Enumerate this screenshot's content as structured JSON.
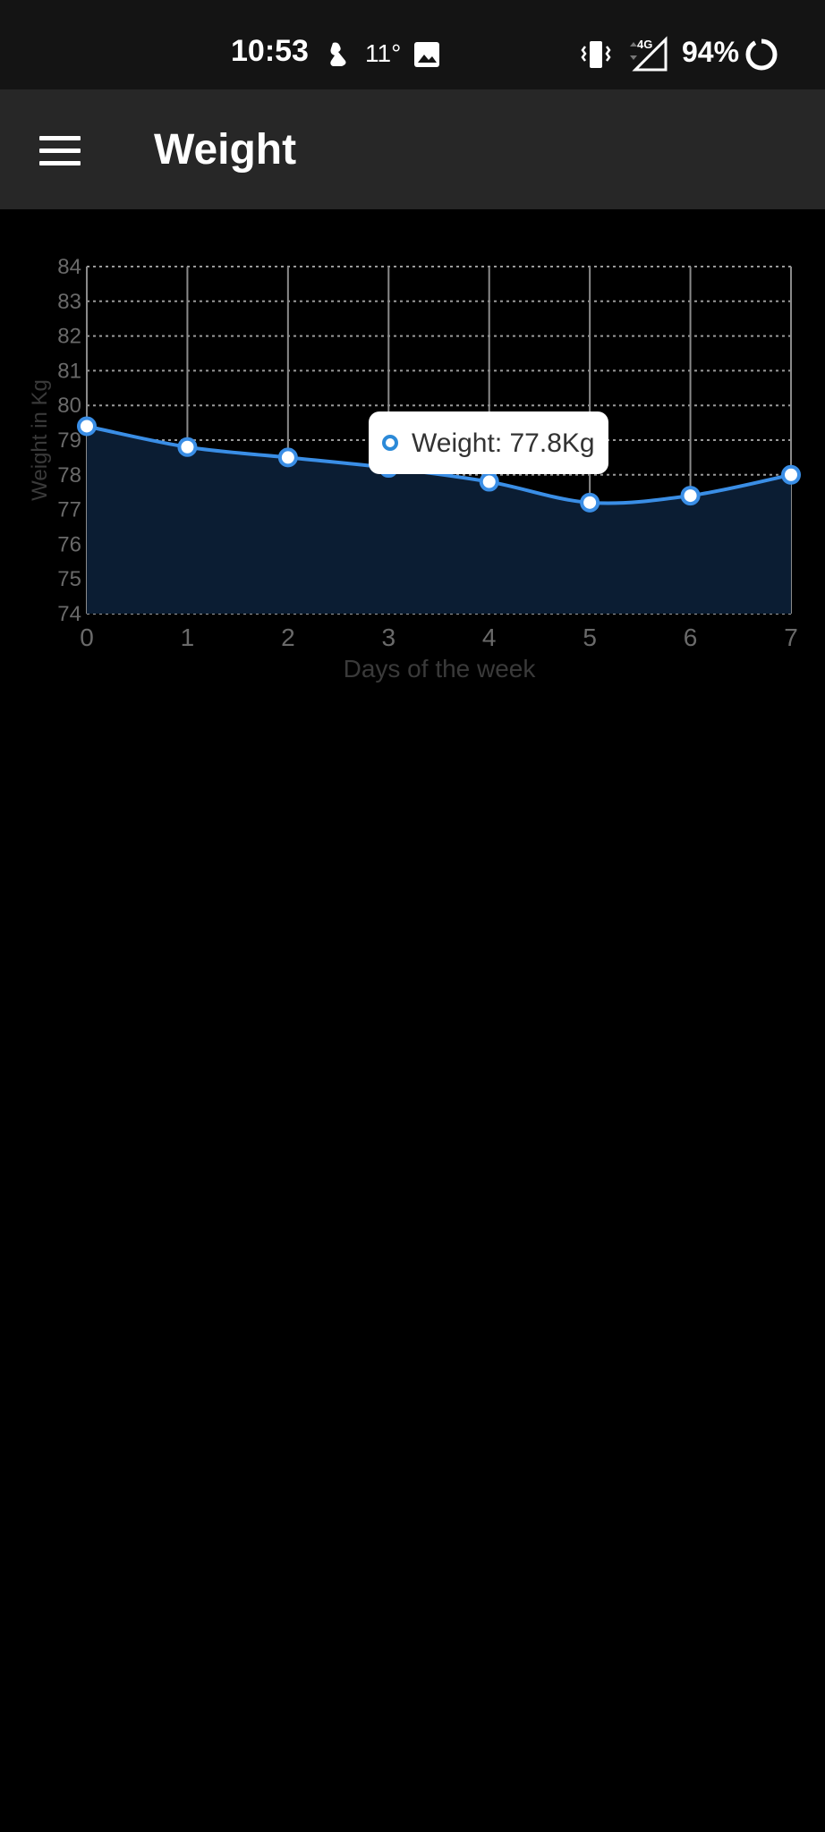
{
  "status_bar": {
    "time": "10:53",
    "temperature": "11°",
    "battery": "94%",
    "network": "4G",
    "icons": [
      "bird-icon",
      "image-icon",
      "vibrate-icon",
      "signal-icon",
      "battery-ring-icon"
    ]
  },
  "app_bar": {
    "title": "Weight",
    "menu_icon": "hamburger-menu-icon"
  },
  "chart_data": {
    "type": "area",
    "x": [
      0,
      1,
      2,
      3,
      4,
      5,
      6,
      7
    ],
    "series": [
      {
        "values": [
          79.4,
          78.8,
          78.5,
          78.2,
          77.8,
          77.2,
          77.4,
          78.0
        ]
      }
    ],
    "xlabel": "Days of the week",
    "ylabel": "Weight in Kg",
    "xlim": [
      0,
      7
    ],
    "ylim": [
      74,
      84
    ],
    "x_ticks": [
      "0",
      "1",
      "2",
      "3",
      "4",
      "5",
      "6",
      "7"
    ],
    "y_ticks": [
      "74",
      "75",
      "76",
      "77",
      "78",
      "79",
      "80",
      "81",
      "82",
      "83",
      "84"
    ],
    "grid": true,
    "line_color": "#3a8ee6",
    "fill_color": "#0b1d33",
    "tooltip": {
      "text": "Weight: 77.8Kg",
      "x": 4
    }
  }
}
